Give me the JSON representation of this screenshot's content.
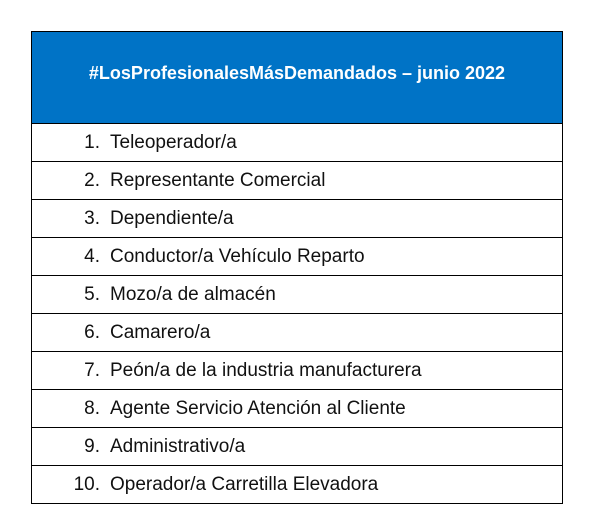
{
  "table": {
    "header": "#LosProfesionalesMásDemandados – junio 2022",
    "header_color": "#0073c6",
    "items": [
      {
        "num": "1.",
        "label": "Teleoperador/a"
      },
      {
        "num": "2.",
        "label": "Representante Comercial"
      },
      {
        "num": "3.",
        "label": "Dependiente/a"
      },
      {
        "num": "4.",
        "label": "Conductor/a Vehículo Reparto"
      },
      {
        "num": "5.",
        "label": "Mozo/a de almacén"
      },
      {
        "num": "6.",
        "label": "Camarero/a"
      },
      {
        "num": "7.",
        "label": "Peón/a de la industria manufacturera"
      },
      {
        "num": "8.",
        "label": "Agente Servicio Atención al Cliente"
      },
      {
        "num": "9.",
        "label": "Administrativo/a"
      },
      {
        "num": "10.",
        "label": "Operador/a Carretilla Elevadora"
      }
    ]
  }
}
